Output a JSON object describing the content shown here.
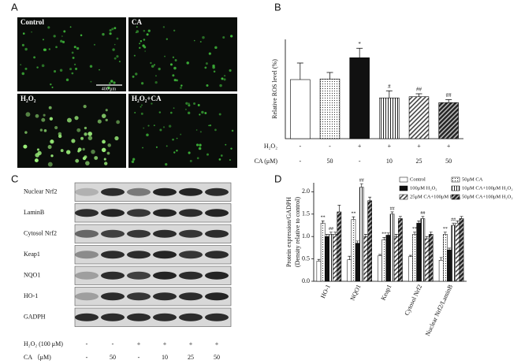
{
  "panel_labels": [
    "A",
    "B",
    "C",
    "D"
  ],
  "panel_a": {
    "tiles": [
      "Control",
      "CA",
      "H₂O₂",
      "H₂O₂+CA"
    ],
    "scale_bar": "400 μm"
  },
  "panel_c": {
    "proteins": [
      "Nuclear Nrf2",
      "LaminB",
      "Cytosol Nrf2",
      "Keap1",
      "NQO1",
      "HO-1",
      "GADPH"
    ],
    "treatments": [
      {
        "label": "H₂O₂ (100 μM)",
        "values": [
          "-",
          "-",
          "+",
          "+",
          "+",
          "+"
        ]
      },
      {
        "label": "CA （μM)",
        "values": [
          "-",
          "50",
          "-",
          "10",
          "25",
          "50"
        ]
      }
    ]
  },
  "chart_data": [
    {
      "type": "bar",
      "y_label": "Relative ROS level (%)",
      "values": [
        100,
        101,
        137,
        69,
        71,
        61
      ],
      "errors": [
        28,
        11,
        16,
        12,
        5,
        5
      ],
      "annotations": [
        null,
        null,
        "*",
        "#",
        "##",
        "##"
      ],
      "fills": [
        "white",
        "dots",
        "solid",
        "vstripes",
        "diagonal",
        "dark-diagonal"
      ],
      "ylim": [
        0,
        168
      ],
      "treatments": [
        {
          "label": "H₂O₂",
          "values": [
            "-",
            "-",
            "+",
            "+",
            "+",
            "+"
          ]
        },
        {
          "label": "CA (μM)",
          "values": [
            "-",
            "50",
            "-",
            "10",
            "25",
            "50"
          ]
        }
      ]
    },
    {
      "type": "grouped-bar",
      "y_label": "Protein expression/GADPH",
      "y_sublabel": "(Density relative to control)",
      "categories": [
        "HO-1",
        "NQO1",
        "Keap1",
        "Cytosol Nrf2",
        "Nuclear Nrf2/LaminB"
      ],
      "ylim": [
        0,
        2.2
      ],
      "yticks": [
        {
          "value": 0,
          "label": "0.0"
        },
        0.5,
        {
          "value": 1,
          "label": "1.0"
        },
        1.5,
        {
          "value": 2,
          "label": "2.0"
        }
      ],
      "series": [
        {
          "name": "Control",
          "fill": "white",
          "values": [
            0.45,
            0.48,
            0.57,
            0.55,
            0.47
          ],
          "errors": [
            0.04,
            0.08,
            0.03,
            0.03,
            0.06
          ]
        },
        {
          "name": "50μM CA",
          "fill": "dots",
          "values": [
            1.3,
            1.38,
            0.93,
            1.05,
            1.05
          ],
          "errors": [
            0.05,
            0.06,
            0.05,
            0.05,
            0.05
          ],
          "annotations": [
            "**",
            "**",
            "**",
            "**",
            "**"
          ]
        },
        {
          "name": "100μM H₂O₂",
          "fill": "solid",
          "values": [
            1.0,
            0.85,
            1.03,
            1.3,
            0.7
          ],
          "errors": [
            0.05,
            0.05,
            0.05,
            0.05,
            0.04
          ]
        },
        {
          "name": "10μM CA+100μM H₂O₂",
          "fill": "vstripes",
          "values": [
            1.05,
            2.1,
            1.5,
            1.4,
            1.25
          ],
          "errors": [
            0.05,
            0.08,
            0.05,
            0.05,
            0.05
          ],
          "annotations": [
            "##",
            "##",
            "##",
            "##",
            "##"
          ]
        },
        {
          "name": "25μM CA+100μM H₂O₂",
          "fill": "diagonal",
          "values": [
            1.05,
            1.0,
            1.0,
            0.95,
            1.3
          ],
          "errors": [
            0.05,
            0.05,
            0.05,
            0.05,
            0.05
          ]
        },
        {
          "name": "50μM CA+100μM H₂O₂",
          "fill": "dark-diagonal",
          "values": [
            1.55,
            1.8,
            1.4,
            1.05,
            1.4
          ],
          "errors": [
            0.15,
            0.08,
            0.05,
            0.05,
            0.05
          ]
        }
      ]
    }
  ]
}
